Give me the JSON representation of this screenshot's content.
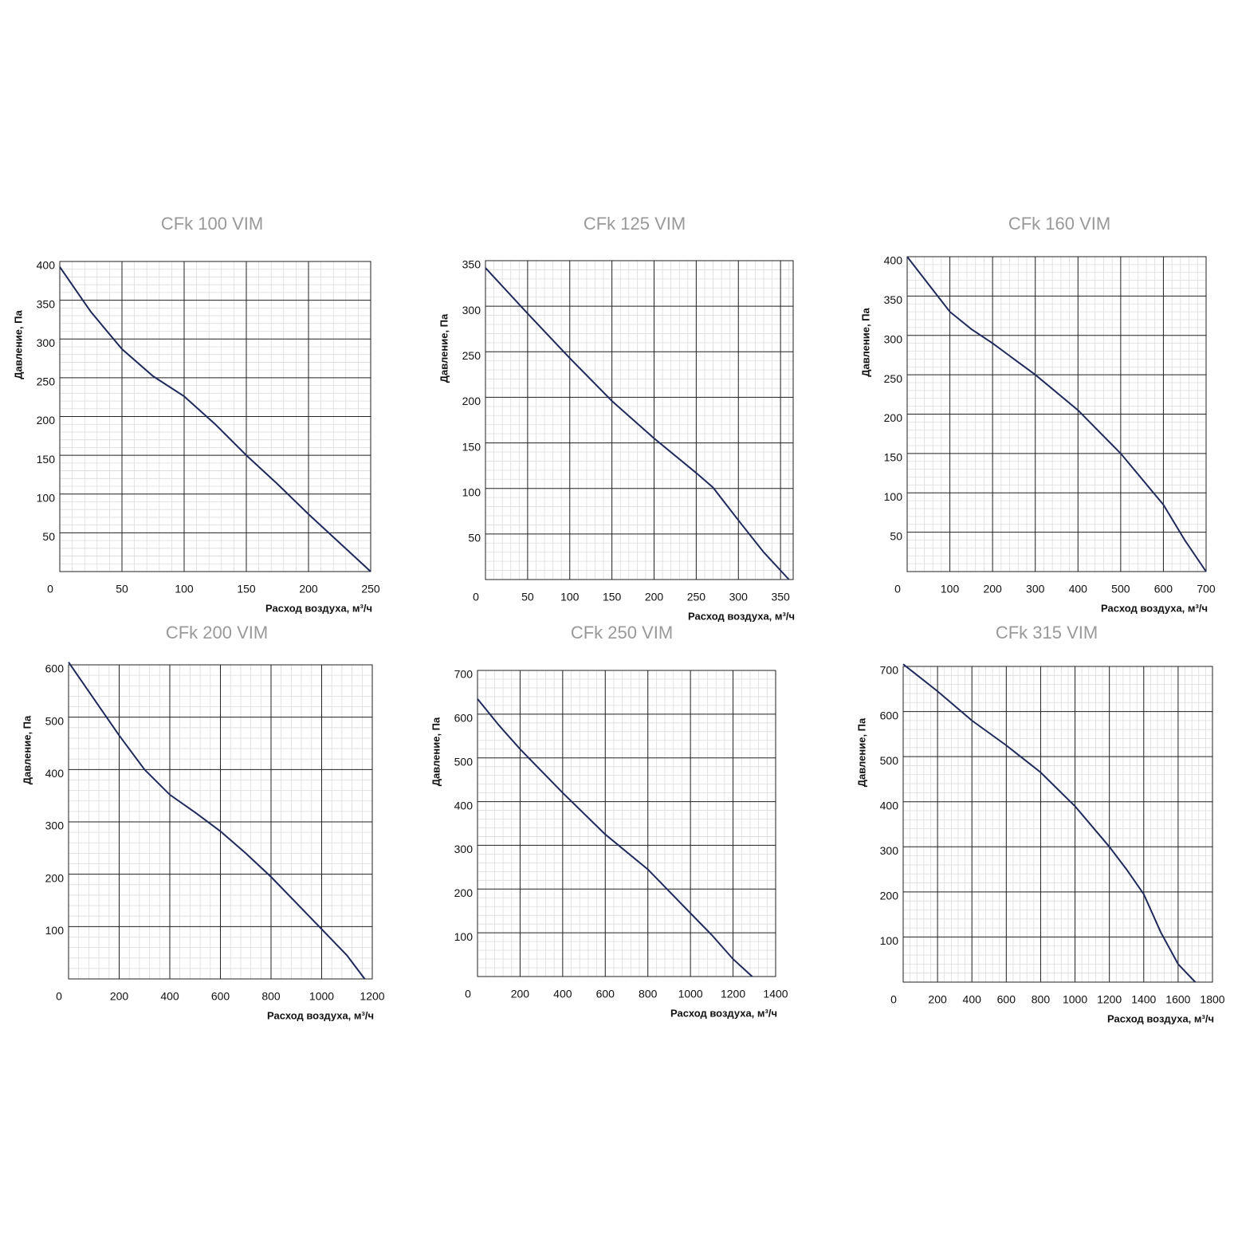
{
  "chart_data": [
    {
      "type": "line",
      "title": "CFk 100 VIM",
      "x_label": "Расход воздуха, м³/ч",
      "y_label": "Давление, Па",
      "color": "#1f2a5c",
      "grid": true,
      "minor_grid": 5,
      "x": [
        0,
        25,
        50,
        75,
        100,
        125,
        150,
        175,
        200,
        225,
        250
      ],
      "values": [
        393,
        335,
        287,
        252,
        226,
        190,
        150,
        113,
        74,
        37,
        0
      ],
      "xlim": [
        0,
        250
      ],
      "xticks": [
        0,
        50,
        100,
        150,
        200,
        250
      ],
      "ylim": [
        0,
        400
      ],
      "yticks": [
        50,
        100,
        150,
        200,
        250,
        300,
        350,
        400
      ]
    },
    {
      "type": "line",
      "title": "CFk 125 VIM",
      "x_label": "Расход воздуха, м³/ч",
      "y_label": "Давление, Па",
      "color": "#1f2a5c",
      "grid": true,
      "minor_grid": 5,
      "x": [
        0,
        50,
        100,
        150,
        200,
        250,
        270,
        300,
        330,
        360
      ],
      "values": [
        342,
        292,
        243,
        196,
        155,
        117,
        101,
        65,
        30,
        0
      ],
      "xlim": [
        0,
        365
      ],
      "xticks": [
        0,
        50,
        100,
        150,
        200,
        250,
        300,
        350
      ],
      "ylim": [
        0,
        350
      ],
      "yticks": [
        50,
        100,
        150,
        200,
        250,
        300,
        350
      ]
    },
    {
      "type": "line",
      "title": "CFk 160 VIM",
      "x_label": "Расход воздуха, м³/ч",
      "y_label": "Давление, Па",
      "color": "#1f2a5c",
      "grid": true,
      "minor_grid": 5,
      "x": [
        0,
        50,
        100,
        150,
        200,
        300,
        400,
        500,
        600,
        650,
        700
      ],
      "values": [
        400,
        365,
        330,
        308,
        290,
        250,
        205,
        150,
        85,
        40,
        0
      ],
      "xlim": [
        0,
        700
      ],
      "xticks": [
        0,
        100,
        200,
        300,
        400,
        500,
        600,
        700
      ],
      "ylim": [
        0,
        400
      ],
      "yticks": [
        50,
        100,
        150,
        200,
        250,
        300,
        350,
        400
      ]
    },
    {
      "type": "line",
      "title": "CFk 200 VIM",
      "x_label": "Расход воздуха, м³/ч",
      "y_label": "Давление, Па",
      "color": "#1f2a5c",
      "grid": true,
      "minor_grid": 5,
      "x": [
        0,
        100,
        200,
        300,
        400,
        500,
        600,
        700,
        800,
        900,
        1000,
        1100,
        1170
      ],
      "values": [
        605,
        535,
        465,
        400,
        352,
        318,
        282,
        240,
        195,
        145,
        95,
        45,
        0
      ],
      "xlim": [
        0,
        1200
      ],
      "xticks": [
        0,
        200,
        400,
        600,
        800,
        1000,
        1200
      ],
      "ylim": [
        0,
        600
      ],
      "yticks": [
        100,
        200,
        300,
        400,
        500,
        600
      ]
    },
    {
      "type": "line",
      "title": "CFk 250 VIM",
      "x_label": "Расход воздуха, м³/ч",
      "y_label": "Давление, Па",
      "color": "#1f2a5c",
      "grid": true,
      "minor_grid": 5,
      "x": [
        0,
        100,
        200,
        400,
        600,
        800,
        1000,
        1100,
        1200,
        1290
      ],
      "values": [
        635,
        575,
        520,
        420,
        325,
        245,
        145,
        95,
        40,
        0
      ],
      "xlim": [
        0,
        1400
      ],
      "xticks": [
        0,
        200,
        400,
        600,
        800,
        1000,
        1200,
        1400
      ],
      "ylim": [
        0,
        700
      ],
      "yticks": [
        100,
        200,
        300,
        400,
        500,
        600,
        700
      ]
    },
    {
      "type": "line",
      "title": "CFk 315 VIM",
      "x_label": "Расход воздуха, м³/ч",
      "y_label": "Давление, Па",
      "color": "#1f2a5c",
      "grid": true,
      "minor_grid": 5,
      "x": [
        0,
        200,
        400,
        600,
        800,
        1000,
        1200,
        1300,
        1400,
        1500,
        1600,
        1700
      ],
      "values": [
        705,
        645,
        580,
        525,
        465,
        390,
        300,
        250,
        195,
        110,
        40,
        0
      ],
      "xlim": [
        0,
        1800
      ],
      "xticks": [
        0,
        200,
        400,
        600,
        800,
        1000,
        1200,
        1400,
        1600,
        1800
      ],
      "ylim": [
        0,
        700
      ],
      "yticks": [
        100,
        200,
        300,
        400,
        500,
        600,
        700
      ]
    }
  ]
}
